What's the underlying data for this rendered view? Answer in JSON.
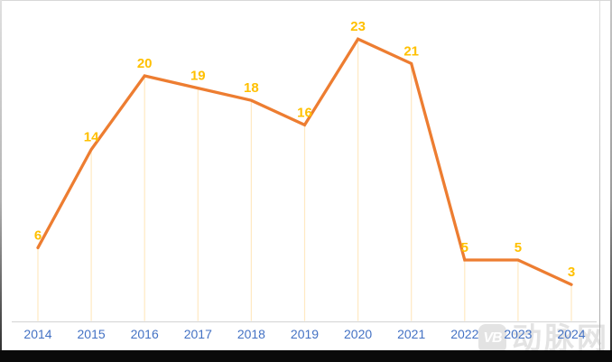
{
  "chart_data": {
    "type": "line",
    "categories": [
      "2014",
      "2015",
      "2016",
      "2017",
      "2018",
      "2019",
      "2020",
      "2021",
      "2022",
      "2023",
      "2024"
    ],
    "values": [
      6,
      14,
      20,
      19,
      18,
      16,
      23,
      21,
      5,
      5,
      3
    ],
    "title": "",
    "xlabel": "",
    "ylabel": "",
    "ylim": [
      0,
      25
    ],
    "legend": "none",
    "grid": "vertical-drop-lines-per-point",
    "data_labels_shown": true,
    "colors": {
      "line": "#ED7D31",
      "data_label": "#FFC000",
      "axis_label": "#4472C4",
      "drop_line": "#FFE9C2",
      "axis_line": "#D9D9D9"
    }
  },
  "watermark": {
    "logo_text": "VB",
    "brand_text": "动脉网"
  },
  "window": {
    "bottom_bar_color": "#0a0a0a",
    "background": "#ffffff"
  }
}
